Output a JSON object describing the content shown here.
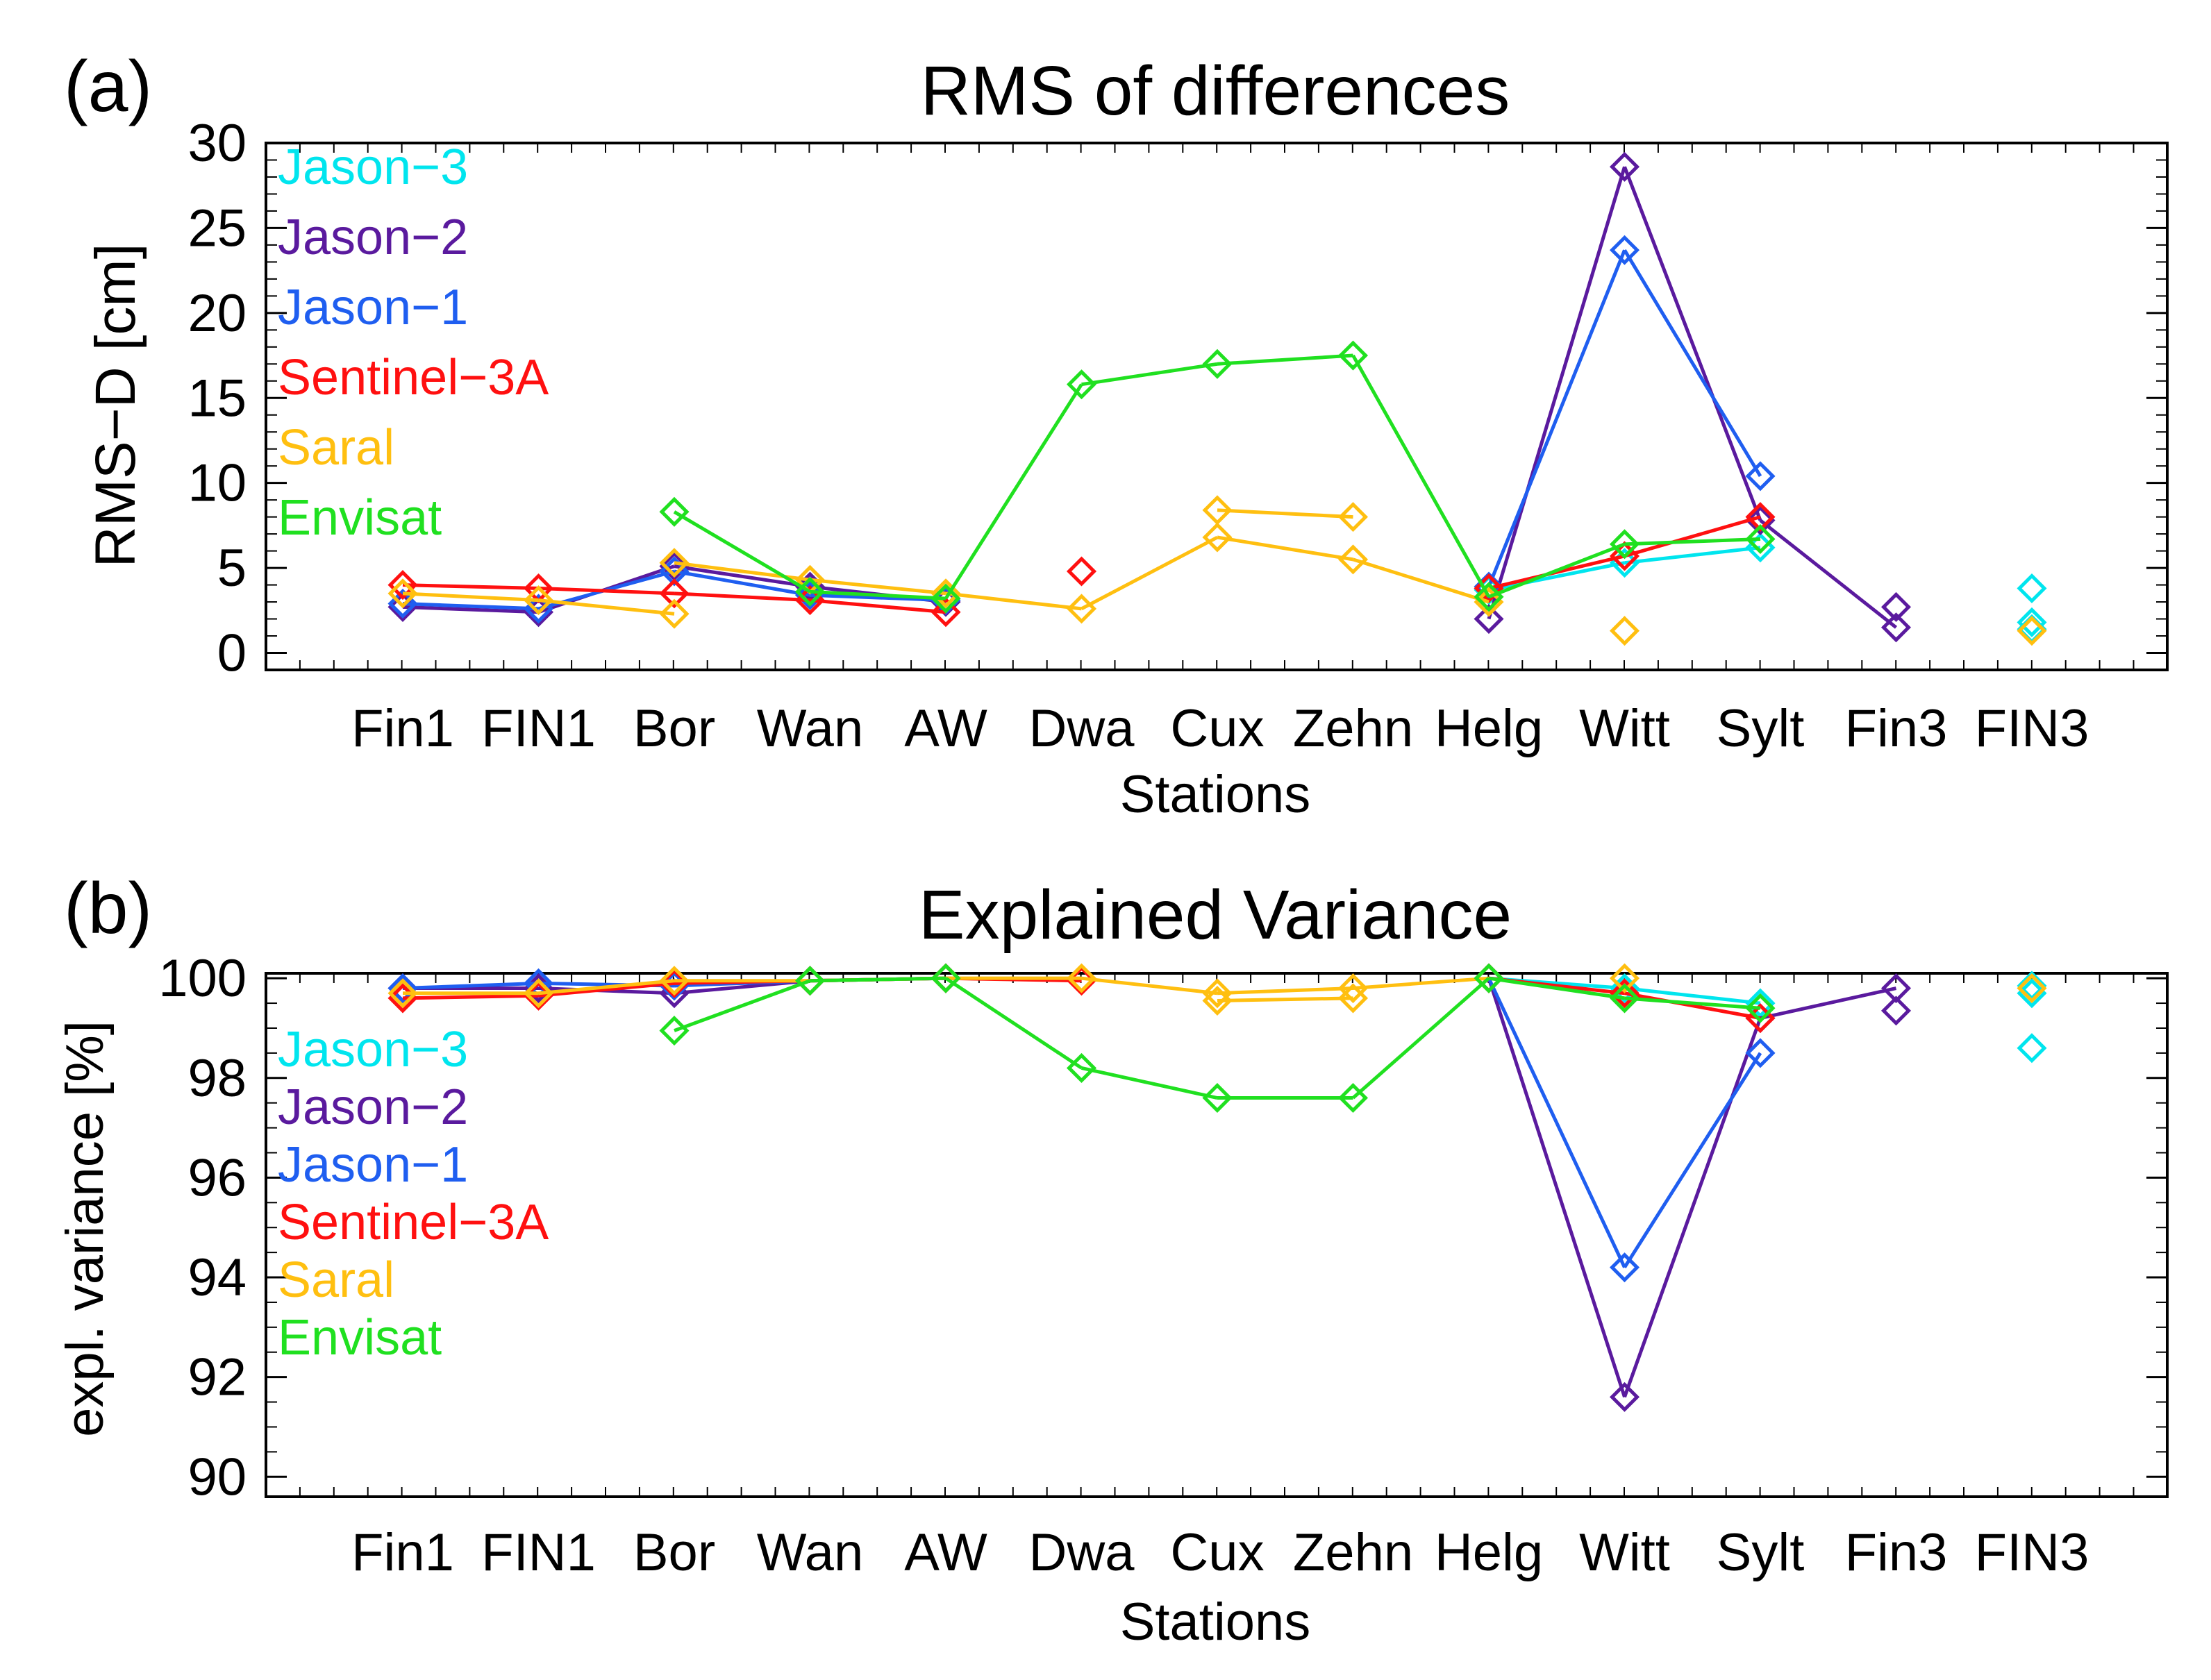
{
  "chart_data": [
    {
      "type": "line",
      "panel_label": "(a)",
      "title": "RMS of differences",
      "xlabel": "Stations",
      "ylabel": "RMS−D [cm]",
      "categories": [
        "Fin1",
        "FIN1",
        "Bor",
        "Wan",
        "AW",
        "Dwa",
        "Cux",
        "Zehn",
        "Helg",
        "Witt",
        "Sylt",
        "Fin3",
        "FIN3"
      ],
      "ylim": [
        -1,
        30
      ],
      "yticks": [
        0,
        5,
        10,
        15,
        20,
        25,
        30
      ],
      "yticklabels": [
        "0",
        "5",
        "10",
        "15",
        "20",
        "25",
        "30"
      ],
      "grid": false,
      "legend": [
        "Jason−3",
        "Jason−2",
        "Jason−1",
        "Sentinel−3A",
        "Saral",
        "Envisat"
      ],
      "series": [
        {
          "name": "Jason−3",
          "color": "#00e5ee",
          "points": [
            [
              8,
              3.7,
              9
            ],
            [
              9,
              5.3,
              10
            ],
            [
              10,
              6.2,
              null
            ],
            [
              12,
              3.8,
              null
            ],
            [
              12,
              1.8,
              null
            ],
            [
              12,
              1.4,
              null
            ]
          ]
        },
        {
          "name": "Jason−2",
          "color": "#5a1a9e",
          "points": [
            [
              0,
              2.7,
              1
            ],
            [
              1,
              2.4,
              2
            ],
            [
              2,
              5.1,
              3
            ],
            [
              3,
              3.9,
              4
            ],
            [
              4,
              3.0,
              5
            ],
            [
              8,
              2.0,
              9
            ],
            [
              9,
              28.6,
              10
            ],
            [
              10,
              7.8,
              11
            ],
            [
              11,
              1.5,
              null
            ],
            [
              11,
              2.7,
              null
            ]
          ]
        },
        {
          "name": "Jason−1",
          "color": "#1f5ef0",
          "points": [
            [
              0,
              2.9,
              1
            ],
            [
              1,
              2.6,
              2
            ],
            [
              2,
              4.8,
              3
            ],
            [
              3,
              3.4,
              4
            ],
            [
              4,
              3.1,
              5
            ],
            [
              8,
              3.9,
              9
            ],
            [
              9,
              23.7,
              10
            ],
            [
              10,
              10.4,
              null
            ]
          ]
        },
        {
          "name": "Sentinel−3A",
          "color": "#ff1010",
          "points": [
            [
              0,
              4.0,
              1
            ],
            [
              1,
              3.8,
              2
            ],
            [
              2,
              3.5,
              3
            ],
            [
              3,
              3.1,
              4
            ],
            [
              4,
              2.4,
              null
            ],
            [
              5,
              4.8,
              null
            ],
            [
              8,
              3.8,
              9
            ],
            [
              9,
              5.7,
              10
            ],
            [
              10,
              8.0,
              null
            ]
          ]
        },
        {
          "name": "Saral",
          "color": "#ffbf10",
          "points": [
            [
              0,
              3.5,
              1
            ],
            [
              1,
              3.1,
              2
            ],
            [
              2,
              2.3,
              null
            ],
            [
              2,
              5.3,
              3
            ],
            [
              3,
              4.3,
              4
            ],
            [
              4,
              3.5,
              5
            ],
            [
              5,
              2.6,
              6
            ],
            [
              6,
              6.8,
              7
            ],
            [
              7,
              5.5,
              8
            ],
            [
              8,
              3.0,
              null
            ],
            [
              6,
              8.4,
              7
            ],
            [
              7,
              8.0,
              null
            ],
            [
              9,
              1.3,
              null
            ],
            [
              12,
              1.3,
              null
            ]
          ]
        },
        {
          "name": "Envisat",
          "color": "#20e020",
          "points": [
            [
              2,
              8.3,
              3
            ],
            [
              3,
              3.6,
              4
            ],
            [
              4,
              3.2,
              5
            ],
            [
              5,
              15.8,
              6
            ],
            [
              6,
              17.0,
              7
            ],
            [
              7,
              17.5,
              8
            ],
            [
              8,
              3.3,
              9
            ],
            [
              9,
              6.4,
              10
            ],
            [
              10,
              6.7,
              null
            ]
          ]
        }
      ]
    },
    {
      "type": "line",
      "panel_label": "(b)",
      "title": "Explained Variance",
      "xlabel": "Stations",
      "ylabel": "expl. variance [%]",
      "categories": [
        "Fin1",
        "FIN1",
        "Bor",
        "Wan",
        "AW",
        "Dwa",
        "Cux",
        "Zehn",
        "Helg",
        "Witt",
        "Sylt",
        "Fin3",
        "FIN3"
      ],
      "ylim": [
        89.6,
        100.1
      ],
      "yticks": [
        90,
        92,
        94,
        96,
        98,
        100
      ],
      "yticklabels": [
        "90",
        "92",
        "94",
        "96",
        "98",
        "100"
      ],
      "grid": false,
      "legend": [
        "Jason−3",
        "Jason−2",
        "Jason−1",
        "Sentinel−3A",
        "Saral",
        "Envisat"
      ],
      "series": [
        {
          "name": "Jason−3",
          "color": "#00e5ee",
          "points": [
            [
              8,
              100.0,
              9
            ],
            [
              9,
              99.8,
              10
            ],
            [
              10,
              99.5,
              null
            ],
            [
              12,
              99.7,
              null
            ],
            [
              12,
              98.6,
              null
            ],
            [
              12,
              99.85,
              null
            ]
          ]
        },
        {
          "name": "Jason−2",
          "color": "#5a1a9e",
          "points": [
            [
              0,
              99.8,
              1
            ],
            [
              1,
              99.8,
              2
            ],
            [
              2,
              99.7,
              3
            ],
            [
              3,
              99.95,
              4
            ],
            [
              4,
              100.0,
              5
            ],
            [
              8,
              100.0,
              9
            ],
            [
              9,
              91.6,
              10
            ],
            [
              10,
              99.2,
              11
            ],
            [
              11,
              99.8,
              null
            ],
            [
              11,
              99.35,
              null
            ]
          ]
        },
        {
          "name": "Jason−1",
          "color": "#1f5ef0",
          "points": [
            [
              0,
              99.8,
              1
            ],
            [
              1,
              99.9,
              2
            ],
            [
              2,
              99.85,
              3
            ],
            [
              3,
              99.95,
              4
            ],
            [
              4,
              100.0,
              5
            ],
            [
              8,
              100.0,
              9
            ],
            [
              9,
              94.2,
              10
            ],
            [
              10,
              98.5,
              null
            ]
          ]
        },
        {
          "name": "Sentinel−3A",
          "color": "#ff1010",
          "points": [
            [
              0,
              99.6,
              1
            ],
            [
              1,
              99.65,
              2
            ],
            [
              2,
              99.9,
              3
            ],
            [
              3,
              99.95,
              4
            ],
            [
              4,
              100.0,
              5
            ],
            [
              5,
              99.95,
              null
            ],
            [
              8,
              100.0,
              9
            ],
            [
              9,
              99.7,
              10
            ],
            [
              10,
              99.2,
              null
            ]
          ]
        },
        {
          "name": "Saral",
          "color": "#ffbf10",
          "points": [
            [
              0,
              99.7,
              1
            ],
            [
              1,
              99.7,
              2
            ],
            [
              2,
              99.95,
              3
            ],
            [
              3,
              99.95,
              4
            ],
            [
              4,
              100.0,
              5
            ],
            [
              5,
              100.0,
              6
            ],
            [
              6,
              99.7,
              7
            ],
            [
              7,
              99.8,
              8
            ],
            [
              8,
              100.0,
              null
            ],
            [
              6,
              99.55,
              7
            ],
            [
              7,
              99.6,
              null
            ],
            [
              9,
              100.0,
              null
            ],
            [
              12,
              99.8,
              null
            ]
          ]
        },
        {
          "name": "Envisat",
          "color": "#20e020",
          "points": [
            [
              2,
              98.95,
              3
            ],
            [
              3,
              99.95,
              4
            ],
            [
              4,
              100.0,
              5
            ],
            [
              5,
              98.2,
              6
            ],
            [
              6,
              97.6,
              7
            ],
            [
              7,
              97.6,
              8
            ],
            [
              8,
              100.0,
              9
            ],
            [
              9,
              99.6,
              10
            ],
            [
              10,
              99.4,
              null
            ]
          ]
        }
      ]
    }
  ]
}
